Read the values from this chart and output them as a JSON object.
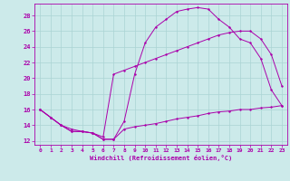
{
  "xlabel": "Windchill (Refroidissement éolien,°C)",
  "bg_color": "#cceaea",
  "grid_color": "#aad4d4",
  "line_color": "#aa00aa",
  "xlim": [
    -0.5,
    23.5
  ],
  "ylim": [
    11.5,
    29.5
  ],
  "xticks": [
    0,
    1,
    2,
    3,
    4,
    5,
    6,
    7,
    8,
    9,
    10,
    11,
    12,
    13,
    14,
    15,
    16,
    17,
    18,
    19,
    20,
    21,
    22,
    23
  ],
  "yticks": [
    12,
    14,
    16,
    18,
    20,
    22,
    24,
    26,
    28
  ],
  "curve1_x": [
    0,
    1,
    2,
    3,
    4,
    5,
    6,
    7,
    8,
    9,
    10,
    11,
    12,
    13,
    14,
    15,
    16,
    17,
    18,
    19,
    20,
    21,
    22,
    23
  ],
  "curve1_y": [
    16,
    15,
    14,
    13.2,
    13.2,
    13,
    12.2,
    12.2,
    14.5,
    20.5,
    24.5,
    26.5,
    27.5,
    28.5,
    28.8,
    29.0,
    28.8,
    27.5,
    26.5,
    25.0,
    24.5,
    22.5,
    18.5,
    16.5
  ],
  "curve2_x": [
    0,
    1,
    2,
    3,
    4,
    5,
    6,
    7,
    8,
    9,
    10,
    11,
    12,
    13,
    14,
    15,
    16,
    17,
    18,
    19,
    20,
    21,
    22,
    23
  ],
  "curve2_y": [
    16,
    15,
    14,
    13.2,
    13.2,
    13,
    12.2,
    12.2,
    13.5,
    13.8,
    14.0,
    14.2,
    14.5,
    14.8,
    15.0,
    15.2,
    15.5,
    15.7,
    15.8,
    16.0,
    16.0,
    16.2,
    16.3,
    16.5
  ],
  "curve3_x": [
    0,
    1,
    2,
    3,
    4,
    5,
    6,
    7,
    8,
    9,
    10,
    11,
    12,
    13,
    14,
    15,
    16,
    17,
    18,
    19,
    20,
    21,
    22,
    23
  ],
  "curve3_y": [
    16,
    15,
    14,
    13.5,
    13.2,
    13.0,
    12.5,
    20.5,
    21.0,
    21.5,
    22.0,
    22.5,
    23.0,
    23.5,
    24.0,
    24.5,
    25.0,
    25.5,
    25.8,
    26.0,
    26.0,
    25.0,
    23.0,
    19.0
  ]
}
